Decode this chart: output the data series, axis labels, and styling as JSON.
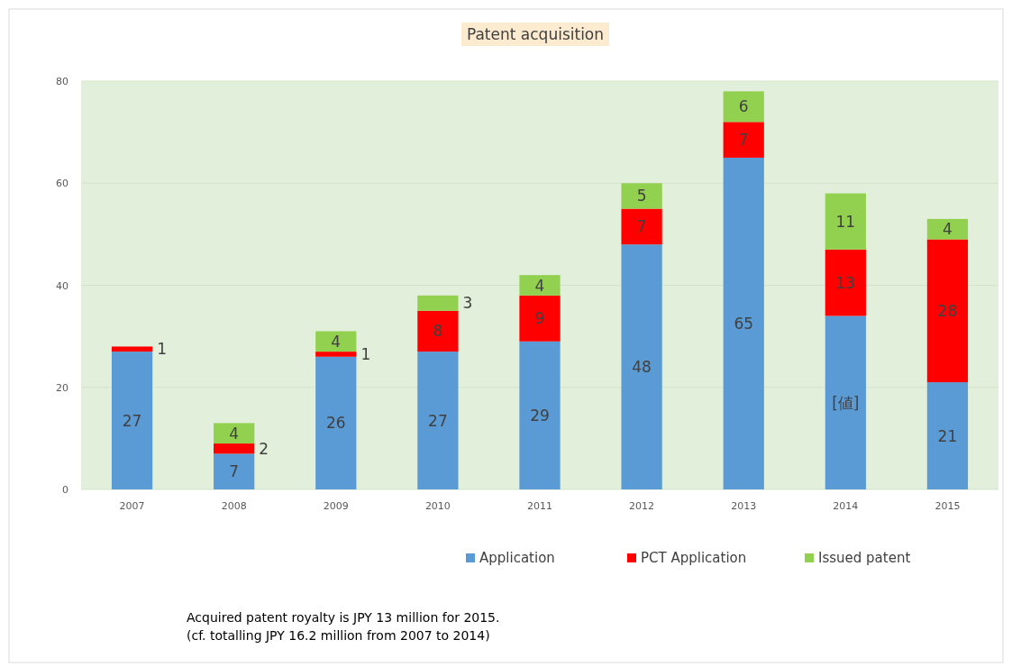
{
  "chart_data": {
    "type": "bar",
    "title": "Patent acquisition",
    "categories": [
      "2007",
      "2008",
      "2009",
      "2010",
      "2011",
      "2012",
      "2013",
      "2014",
      "2015"
    ],
    "stacked": true,
    "ylim": [
      0,
      80
    ],
    "yticks": [
      0,
      20,
      40,
      60,
      80
    ],
    "grid": "y",
    "legend": "bottom",
    "series": [
      {
        "name": "Application",
        "color": "#5b9bd5",
        "values": [
          27,
          7,
          26,
          27,
          29,
          48,
          65,
          34,
          21
        ],
        "value_labels": [
          "27",
          "7",
          "26",
          "27",
          "29",
          "48",
          "65",
          "[値]",
          "21"
        ]
      },
      {
        "name": "PCT Application",
        "color": "#ff0000",
        "values": [
          1,
          2,
          1,
          8,
          9,
          7,
          7,
          13,
          28
        ],
        "value_labels": [
          "1",
          "2",
          "1",
          "8",
          "9",
          "7",
          "7",
          "13",
          "28"
        ]
      },
      {
        "name": "Issued patent",
        "color": "#92d050",
        "values": [
          null,
          4,
          4,
          3,
          4,
          5,
          6,
          11,
          4
        ],
        "value_labels": [
          null,
          "4",
          "4",
          "3",
          "4",
          "5",
          "6",
          "11",
          "4"
        ]
      }
    ],
    "annotations": [
      "Acquired patent royalty is JPY 13 million for 2015.",
      "(cf. totalling JPY 16.2 million from 2007 to 2014)"
    ]
  }
}
